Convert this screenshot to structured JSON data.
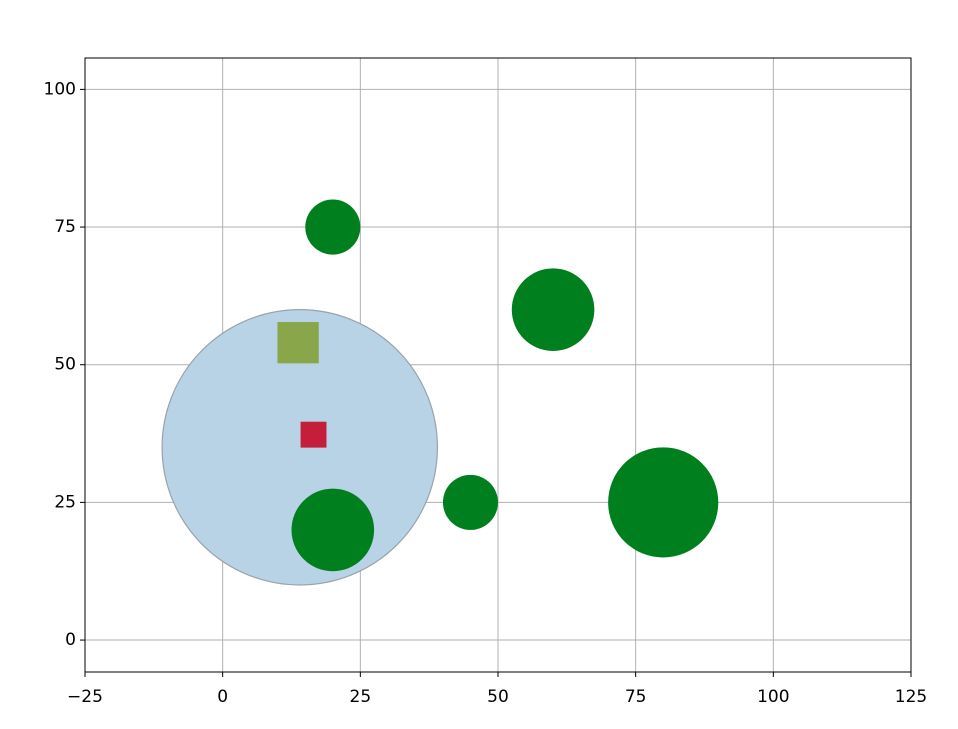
{
  "chart_data": {
    "type": "scatter",
    "xlim": [
      -25,
      125
    ],
    "ylim": [
      -5.8,
      105.7
    ],
    "xticks": [
      {
        "value": -25,
        "label": "−25"
      },
      0,
      25,
      50,
      75,
      100,
      125
    ],
    "yticks": [
      0,
      25,
      50,
      75,
      100
    ],
    "grid": true,
    "series": [
      {
        "shape": "circle",
        "color": "#b7d3e5",
        "edgecolor": "#9aa3aa",
        "x": [
          14
        ],
        "values": [
          35
        ],
        "sizes": [
          25
        ]
      },
      {
        "shape": "circle",
        "color": "#007f1f",
        "x": [
          20,
          60,
          45,
          80,
          20
        ],
        "values": [
          75,
          60,
          25,
          25,
          20
        ],
        "sizes": [
          5,
          7.5,
          5,
          10,
          7.5
        ]
      },
      {
        "shape": "square",
        "color": "#8aa64a",
        "x": [
          13.7
        ],
        "values": [
          54
        ],
        "sizes": [
          7.5
        ]
      },
      {
        "shape": "square",
        "color": "#c41e3a",
        "x": [
          16.5
        ],
        "values": [
          37.3
        ],
        "sizes": [
          4.7
        ]
      }
    ]
  }
}
